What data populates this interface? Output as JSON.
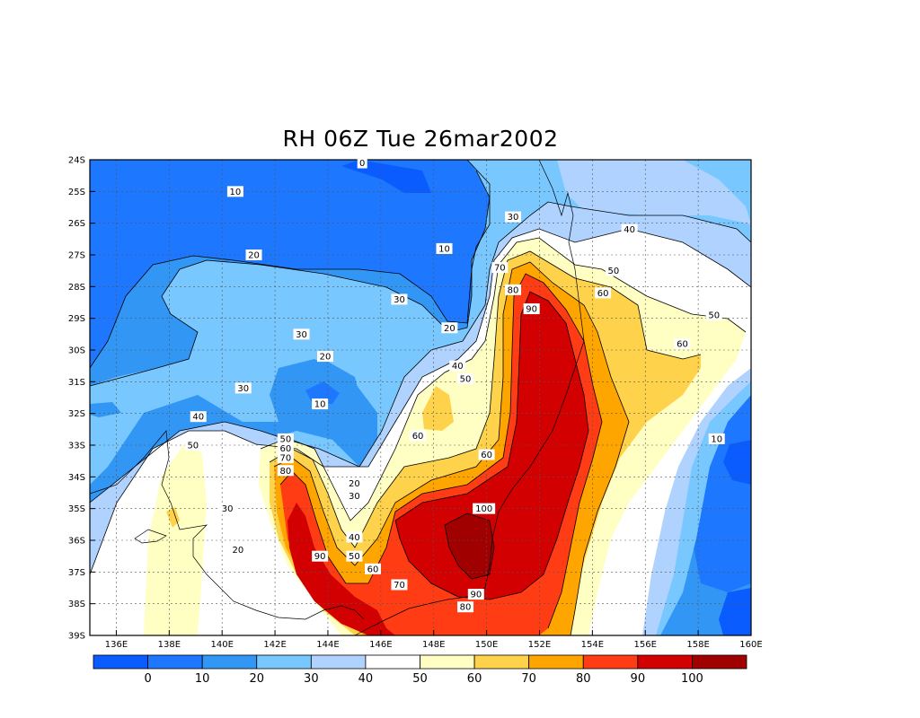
{
  "title": "RH 06Z Tue 26mar2002",
  "chart_data": {
    "type": "contour-map",
    "variable": "RH",
    "xlim": [
      135,
      160
    ],
    "ylim": [
      -39,
      -24
    ],
    "lon_ticks": [
      "136E",
      "138E",
      "140E",
      "142E",
      "144E",
      "146E",
      "148E",
      "150E",
      "152E",
      "154E",
      "156E",
      "158E",
      "160E"
    ],
    "lat_ticks": [
      "24S",
      "25S",
      "26S",
      "27S",
      "28S",
      "29S",
      "30S",
      "31S",
      "32S",
      "33S",
      "34S",
      "35S",
      "36S",
      "37S",
      "38S",
      "39S"
    ],
    "levels": [
      0,
      10,
      20,
      30,
      40,
      50,
      60,
      70,
      80,
      90,
      100
    ],
    "colorbar_colors": [
      "#0a5cff",
      "#1e78ff",
      "#3296f5",
      "#78c8ff",
      "#afd2ff",
      "#ffffff",
      "#ffffc3",
      "#ffd24b",
      "#ffa500",
      "#ff3c14",
      "#d20000",
      "#a00000"
    ],
    "colorbar_labels": [
      "0",
      "10",
      "20",
      "30",
      "40",
      "50",
      "60",
      "70",
      "80",
      "90",
      "100"
    ],
    "contour_labels": [
      {
        "text": "0",
        "lon": 145.3,
        "lat": -24.1
      },
      {
        "text": "10",
        "lon": 140.5,
        "lat": -25.0
      },
      {
        "text": "20",
        "lon": 141.2,
        "lat": -27.0
      },
      {
        "text": "10",
        "lon": 148.4,
        "lat": -26.8
      },
      {
        "text": "30",
        "lon": 151.0,
        "lat": -25.8
      },
      {
        "text": "40",
        "lon": 155.4,
        "lat": -26.2
      },
      {
        "text": "30",
        "lon": 146.7,
        "lat": -28.4
      },
      {
        "text": "50",
        "lon": 154.8,
        "lat": -27.5
      },
      {
        "text": "70",
        "lon": 150.5,
        "lat": -27.4
      },
      {
        "text": "60",
        "lon": 154.4,
        "lat": -28.2
      },
      {
        "text": "80",
        "lon": 151.0,
        "lat": -28.1
      },
      {
        "text": "90",
        "lon": 151.7,
        "lat": -28.7
      },
      {
        "text": "20",
        "lon": 148.6,
        "lat": -29.3
      },
      {
        "text": "30",
        "lon": 143.0,
        "lat": -29.5
      },
      {
        "text": "50",
        "lon": 158.6,
        "lat": -28.9
      },
      {
        "text": "60",
        "lon": 157.4,
        "lat": -29.8
      },
      {
        "text": "20",
        "lon": 143.9,
        "lat": -30.2
      },
      {
        "text": "40",
        "lon": 148.9,
        "lat": -30.5
      },
      {
        "text": "50",
        "lon": 149.2,
        "lat": -30.9
      },
      {
        "text": "30",
        "lon": 140.8,
        "lat": -31.2
      },
      {
        "text": "10",
        "lon": 143.7,
        "lat": -31.7
      },
      {
        "text": "40",
        "lon": 139.1,
        "lat": -32.1
      },
      {
        "text": "60",
        "lon": 147.4,
        "lat": -32.7
      },
      {
        "text": "50",
        "lon": 138.9,
        "lat": -33.0
      },
      {
        "text": "50",
        "lon": 142.4,
        "lat": -32.8
      },
      {
        "text": "60",
        "lon": 142.4,
        "lat": -33.1
      },
      {
        "text": "70",
        "lon": 142.4,
        "lat": -33.4
      },
      {
        "text": "80",
        "lon": 142.4,
        "lat": -33.8
      },
      {
        "text": "60",
        "lon": 150.0,
        "lat": -33.3
      },
      {
        "text": "10",
        "lon": 158.7,
        "lat": -32.8
      },
      {
        "text": "20",
        "lon": 145.0,
        "lat": -34.2
      },
      {
        "text": "30",
        "lon": 145.0,
        "lat": -34.6
      },
      {
        "text": "30",
        "lon": 140.2,
        "lat": -35.0
      },
      {
        "text": "100",
        "lon": 149.9,
        "lat": -35.0
      },
      {
        "text": "40",
        "lon": 145.0,
        "lat": -35.9
      },
      {
        "text": "20",
        "lon": 140.6,
        "lat": -36.3
      },
      {
        "text": "90",
        "lon": 143.7,
        "lat": -36.5
      },
      {
        "text": "50",
        "lon": 145.0,
        "lat": -36.5
      },
      {
        "text": "60",
        "lon": 145.7,
        "lat": -36.9
      },
      {
        "text": "70",
        "lon": 146.7,
        "lat": -37.4
      },
      {
        "text": "90",
        "lon": 149.6,
        "lat": -37.7
      },
      {
        "text": "80",
        "lon": 149.2,
        "lat": -38.1
      }
    ]
  }
}
